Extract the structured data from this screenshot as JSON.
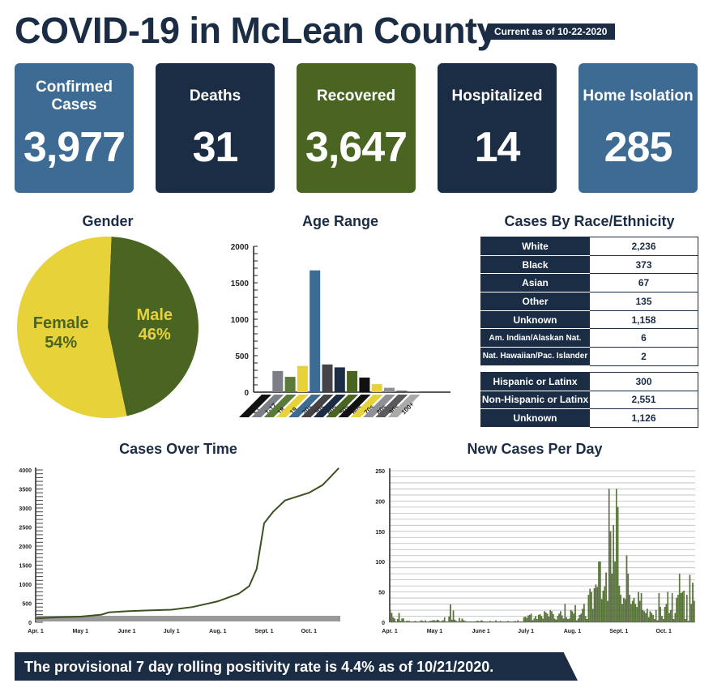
{
  "header": {
    "title": "COVID-19 in McLean County",
    "current_as_of": "Current as of 10-22-2020"
  },
  "cards": [
    {
      "label": "Confirmed Cases",
      "value": "3,977",
      "color": "#3d6b94"
    },
    {
      "label": "Deaths",
      "value": "31",
      "color": "#1b2c45"
    },
    {
      "label": "Recovered",
      "value": "3,647",
      "color": "#4a6421"
    },
    {
      "label": "Hospitalized",
      "value": "14",
      "color": "#1b2c45"
    },
    {
      "label": "Home Isolation",
      "value": "285",
      "color": "#3d6b94"
    }
  ],
  "colors": {
    "navy": "#1b2c45",
    "blue": "#3d6b94",
    "green": "#4a6421",
    "yellow": "#e8d23a",
    "gray": "#7d7f86"
  },
  "race": {
    "title": "Cases By Race/Ethnicity",
    "rows": [
      {
        "label": "White",
        "value": "2,236"
      },
      {
        "label": "Black",
        "value": "373"
      },
      {
        "label": "Asian",
        "value": "67"
      },
      {
        "label": "Other",
        "value": "135"
      },
      {
        "label": "Unknown",
        "value": "1,158"
      },
      {
        "label": "Am. Indian/Alaskan Nat.",
        "value": "6"
      },
      {
        "label": "Nat. Hawaiian/Pac. Islander",
        "value": "2"
      }
    ],
    "ethnicity_rows": [
      {
        "label": "Hispanic or Latinx",
        "value": "300"
      },
      {
        "label": "Non-Hispanic or Latinx",
        "value": "2,551"
      },
      {
        "label": "Unknown",
        "value": "1,126"
      }
    ]
  },
  "banner": "The provisional 7 day rolling positivity rate is 4.4% as of 10/21/2020.",
  "chart_data": [
    {
      "type": "pie",
      "title": "Gender",
      "slices": [
        {
          "name": "Male",
          "value": 46,
          "label": "46%",
          "color": "#4a6421"
        },
        {
          "name": "Female",
          "value": 54,
          "label": "54%",
          "color": "#e8d23a"
        }
      ]
    },
    {
      "type": "bar",
      "title": "Age Range",
      "categories": [
        "<1",
        "1-17",
        "18",
        "19",
        "20s",
        "30s",
        "40s",
        "50s",
        "60s",
        "70s",
        "80s",
        "90s",
        "100+"
      ],
      "values": [
        5,
        290,
        210,
        360,
        1670,
        380,
        340,
        290,
        200,
        110,
        60,
        20,
        3
      ],
      "colors": [
        "#111111",
        "#7d7f86",
        "#5a7a3a",
        "#e8d23a",
        "#3d6b94",
        "#444448",
        "#1b2c45",
        "#4a6421",
        "#111111",
        "#e8d23a",
        "#8e9096",
        "#5a5a5e",
        "#aaaaaa"
      ],
      "ylim": [
        0,
        2000
      ],
      "yticks": [
        0,
        500,
        1000,
        1500,
        2000
      ]
    },
    {
      "type": "line",
      "title": "Cases Over Time",
      "ylim": [
        0,
        4000
      ],
      "yticks": [
        0,
        500,
        1000,
        1500,
        2000,
        2500,
        3000,
        3500,
        4000
      ],
      "xticks": [
        "Apr. 1",
        "May 1",
        "June 1",
        "July 1",
        "Aug. 1",
        "Sept. 1",
        "Oct. 1"
      ],
      "x": [
        "2020-04-01",
        "2020-04-15",
        "2020-05-01",
        "2020-05-15",
        "2020-05-20",
        "2020-06-01",
        "2020-06-15",
        "2020-07-01",
        "2020-07-15",
        "2020-08-01",
        "2020-08-15",
        "2020-08-22",
        "2020-08-27",
        "2020-09-01",
        "2020-09-07",
        "2020-09-15",
        "2020-10-01",
        "2020-10-10",
        "2020-10-15",
        "2020-10-21"
      ],
      "y": [
        100,
        130,
        150,
        200,
        260,
        290,
        310,
        330,
        400,
        550,
        750,
        950,
        1400,
        2600,
        2900,
        3200,
        3400,
        3600,
        3800,
        4050
      ]
    },
    {
      "type": "bar",
      "title": "New Cases Per Day",
      "ylim": [
        0,
        250
      ],
      "yticks": [
        0,
        50,
        100,
        150,
        200,
        250
      ],
      "xticks": [
        "Apr. 1",
        "May 1",
        "June 1",
        "July 1",
        "Aug. 1",
        "Sept. 1",
        "Oct. 1"
      ],
      "start": "2020-04-01",
      "values": [
        20,
        15,
        8,
        6,
        1,
        5,
        15,
        2,
        6,
        6,
        1,
        2,
        2,
        2,
        1,
        1,
        1,
        2,
        1,
        1,
        1,
        3,
        2,
        1,
        3,
        1,
        1,
        2,
        2,
        3,
        3,
        2,
        4,
        3,
        1,
        2,
        3,
        8,
        1,
        1,
        9,
        29,
        4,
        19,
        4,
        2,
        1,
        7,
        2,
        6,
        3,
        2,
        1,
        1,
        1,
        1,
        1,
        1,
        1,
        2,
        2,
        1,
        3,
        2,
        1,
        1,
        1,
        1,
        2,
        1,
        1,
        1,
        3,
        1,
        1,
        2,
        1,
        1,
        1,
        1,
        2,
        1,
        1,
        1,
        1,
        2,
        1,
        3,
        1,
        1,
        1,
        8,
        9,
        7,
        11,
        12,
        14,
        3,
        6,
        10,
        5,
        12,
        13,
        10,
        6,
        18,
        16,
        14,
        9,
        20,
        18,
        13,
        6,
        4,
        10,
        14,
        18,
        11,
        6,
        30,
        8,
        5,
        6,
        20,
        18,
        14,
        28,
        3,
        6,
        12,
        14,
        22,
        30,
        10,
        5,
        45,
        55,
        50,
        22,
        56,
        62,
        58,
        100,
        100,
        38,
        52,
        59,
        82,
        35,
        220,
        150,
        80,
        160,
        100,
        220,
        190,
        60,
        45,
        30,
        40,
        38,
        110,
        80,
        45,
        30,
        35,
        40,
        30,
        25,
        50,
        35,
        48,
        20,
        18,
        15,
        22,
        8,
        18,
        15,
        12,
        5,
        20,
        3,
        48,
        25,
        10,
        5,
        25,
        30,
        50,
        15,
        20,
        48,
        5,
        15,
        40,
        45,
        80,
        48,
        50,
        52,
        5,
        45,
        2,
        78,
        30,
        65,
        35
      ]
    }
  ]
}
